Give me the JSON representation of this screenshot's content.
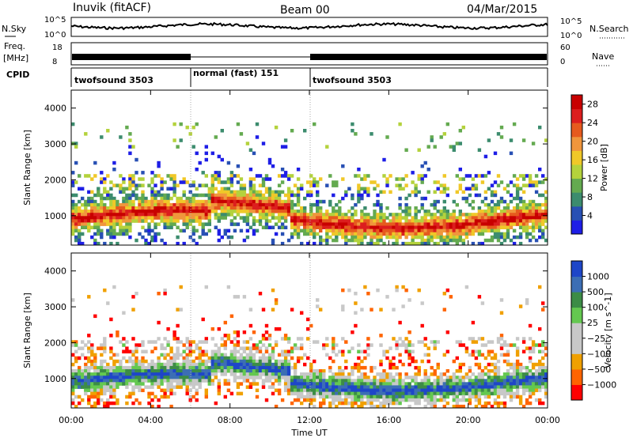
{
  "header": {
    "title_left": "Inuvik (fitACF)",
    "title_center": "Beam 00",
    "title_right": "04/Mar/2015"
  },
  "strip_labels": {
    "nsky": "N.Sky",
    "nsky_max": "10^5",
    "nsky_min": "10^0",
    "nsearch": "N.Search",
    "nsearch_max": "10^5",
    "nsearch_min": "10^0",
    "freq": "Freq.",
    "freq_unit": "[MHz]",
    "freq_max": "18",
    "freq_min": "8",
    "nave": "Nave",
    "nave_max": "60",
    "nave_min": "0",
    "cpid": "CPID"
  },
  "cpid_segments": [
    {
      "label": "twofsound 3503",
      "start_h": 0,
      "end_h": 6
    },
    {
      "label": "normal (fast) 151",
      "start_h": 6,
      "end_h": 12
    },
    {
      "label": "twofsound 3503",
      "start_h": 12,
      "end_h": 24
    }
  ],
  "x_axis": {
    "label": "Time UT",
    "ticks": [
      "00:00",
      "04:00",
      "08:00",
      "12:00",
      "16:00",
      "20:00",
      "00:00"
    ],
    "range_h": [
      0,
      24
    ]
  },
  "colors": {
    "power": [
      "#1e1ee6",
      "#2850b4",
      "#3c8c6e",
      "#64aa50",
      "#b4d23c",
      "#f0c828",
      "#f0963c",
      "#e65a1e",
      "#dc1e1e",
      "#c80000"
    ],
    "velocity": [
      "#ff0000",
      "#ff6400",
      "#f0a000",
      "#c8c8c8",
      "#c8c8c8",
      "#64c850",
      "#3c8c46",
      "#3c6eb4",
      "#1e46c8"
    ]
  },
  "chart_data": [
    {
      "type": "heatmap",
      "title": "Power",
      "ylabel": "Slant Range [km]",
      "xlabel": "",
      "ylim": [
        180,
        4500
      ],
      "yticks": [
        "1000",
        "2000",
        "3000",
        "4000"
      ],
      "colorbar": {
        "label": "Power [dB]",
        "ticks": [
          "4",
          "8",
          "12",
          "16",
          "20",
          "24",
          "28"
        ],
        "range": [
          0,
          30
        ]
      }
    },
    {
      "type": "heatmap",
      "title": "Velocity",
      "ylabel": "Slant Range [km]",
      "xlabel": "Time UT",
      "ylim": [
        180,
        4500
      ],
      "yticks": [
        "1000",
        "2000",
        "3000",
        "4000"
      ],
      "colorbar": {
        "label": "Velocity [m s^-1]",
        "ticks": [
          "1000",
          "500",
          "100",
          "25",
          "−25",
          "−100",
          "−500",
          "−1000"
        ]
      }
    }
  ]
}
